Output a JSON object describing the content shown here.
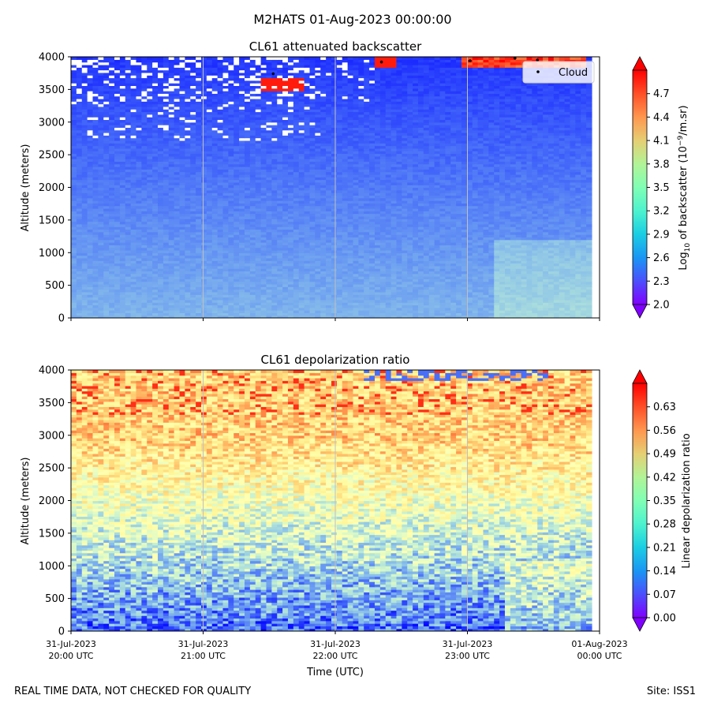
{
  "figure": {
    "suptitle": "M2HATS 01-Aug-2023 00:00:00",
    "footer_left": "REAL TIME DATA, NOT CHECKED FOR QUALITY",
    "footer_right": "Site: ISS1",
    "xlabel": "Time (UTC)",
    "x_ticks": [
      {
        "line1": "31-Jul-2023",
        "line2": "20:00 UTC"
      },
      {
        "line1": "31-Jul-2023",
        "line2": "21:00 UTC"
      },
      {
        "line1": "31-Jul-2023",
        "line2": "22:00 UTC"
      },
      {
        "line1": "31-Jul-2023",
        "line2": "23:00 UTC"
      },
      {
        "line1": "01-Aug-2023",
        "line2": "00:00 UTC"
      }
    ]
  },
  "colors": {
    "rainbow_low": "#8000ff",
    "rainbow_high": "#ff0000",
    "gridline": "#bfbfbf",
    "cloud_marker": "#000000",
    "missing_data": "#ffffff"
  },
  "chart_data": [
    {
      "type": "heatmap",
      "title": "CL61 attenuated backscatter",
      "xlabel": "",
      "ylabel": "Altitude (meters)",
      "xlim_hours": [
        20,
        24
      ],
      "ylim": [
        0,
        4000
      ],
      "y_ticks": [
        0,
        500,
        1000,
        1500,
        2000,
        2500,
        3000,
        3500,
        4000
      ],
      "colorbar": {
        "label_prefix": "Log",
        "label_sub": "10",
        "label_mid": " of backscatter (10",
        "label_sup": "−9",
        "label_suffix": "/m.sr)",
        "vmin": 2.0,
        "vmax": 5.0,
        "ticks": [
          "2.0",
          "2.3",
          "2.6",
          "2.9",
          "3.2",
          "3.5",
          "3.8",
          "4.1",
          "4.4",
          "4.7"
        ],
        "extend": "both",
        "colormap": "rainbow"
      },
      "legend": {
        "label": "Cloud",
        "location": "upper right",
        "marker": "dot"
      },
      "cloud_points": [
        {
          "time_h": 21.53,
          "altitude": 3740
        },
        {
          "time_h": 22.35,
          "altitude": 3920
        },
        {
          "time_h": 23.02,
          "altitude": 3940
        },
        {
          "time_h": 23.36,
          "altitude": 3980
        },
        {
          "time_h": 23.53,
          "altitude": 3950
        }
      ],
      "features": [
        {
          "desc": "dense cloud layer",
          "time_h": [
            21.3,
            21.6
          ],
          "altitude": [
            3500,
            3700
          ],
          "value": 4.9
        },
        {
          "desc": "dense cloud layer",
          "time_h": [
            22.3,
            22.45
          ],
          "altitude": [
            3860,
            4000
          ],
          "value": 4.9
        },
        {
          "desc": "dense cloud layer",
          "time_h": [
            22.95,
            23.9
          ],
          "altitude": [
            3850,
            4000
          ],
          "value": 4.9
        }
      ]
    },
    {
      "type": "heatmap",
      "title": "CL61 depolarization ratio",
      "xlabel": "Time (UTC)",
      "ylabel": "Altitude (meters)",
      "xlim_hours": [
        20,
        24
      ],
      "ylim": [
        0,
        4000
      ],
      "y_ticks": [
        0,
        500,
        1000,
        1500,
        2000,
        2500,
        3000,
        3500,
        4000
      ],
      "colorbar": {
        "label": "Linear depolarization ratio",
        "vmin": 0.0,
        "vmax": 0.7,
        "ticks": [
          "0.00",
          "0.07",
          "0.14",
          "0.21",
          "0.28",
          "0.35",
          "0.42",
          "0.49",
          "0.56",
          "0.63"
        ],
        "extend": "both",
        "colormap": "rainbow"
      },
      "profile": [
        {
          "altitude": 0,
          "value": 0.12
        },
        {
          "altitude": 1000,
          "value": 0.18
        },
        {
          "altitude": 1500,
          "value": 0.24
        },
        {
          "altitude": 2000,
          "value": 0.35
        },
        {
          "altitude": 2500,
          "value": 0.42
        },
        {
          "altitude": 3000,
          "value": 0.46
        },
        {
          "altitude": 3500,
          "value": 0.49
        },
        {
          "altitude": 4000,
          "value": 0.5
        }
      ]
    }
  ]
}
